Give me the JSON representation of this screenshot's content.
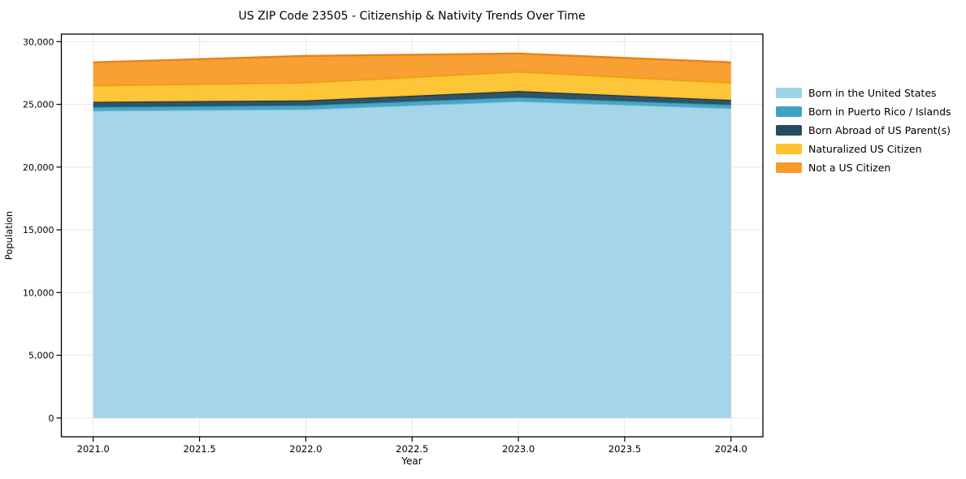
{
  "chart_data": {
    "type": "area",
    "stacked": true,
    "title": "US ZIP Code 23505 - Citizenship & Nativity Trends Over Time",
    "xlabel": "Year",
    "ylabel": "Population",
    "x": [
      2021,
      2022,
      2023,
      2024
    ],
    "series": [
      {
        "name": "Born in the United States",
        "color": "#9fd3e8",
        "edge_color": "#7bbcd9",
        "values": [
          24500,
          24610,
          25250,
          24690
        ]
      },
      {
        "name": "Born in Puerto Rico / Islands",
        "color": "#3fa3c2",
        "edge_color": "#2c89a8",
        "values": [
          300,
          320,
          330,
          290
        ]
      },
      {
        "name": "Born Abroad of US Parent(s)",
        "color": "#274b5f",
        "edge_color": "#1a3847",
        "values": [
          400,
          380,
          480,
          370
        ]
      },
      {
        "name": "Naturalized US Citizen",
        "color": "#fdc22d",
        "edge_color": "#eda214",
        "values": [
          1300,
          1420,
          1540,
          1370
        ]
      },
      {
        "name": "Not a US Citizen",
        "color": "#f89b28",
        "edge_color": "#e8821b",
        "values": [
          1850,
          2130,
          1450,
          1630
        ]
      }
    ],
    "totals": [
      28350,
      28860,
      29050,
      28350
    ],
    "x_tick_values": [
      2021.0,
      2021.5,
      2022.0,
      2022.5,
      2023.0,
      2023.5,
      2024.0
    ],
    "x_tick_labels": [
      "2021.0",
      "2021.5",
      "2022.0",
      "2022.5",
      "2023.0",
      "2023.5",
      "2024.0"
    ],
    "y_tick_values": [
      0,
      5000,
      10000,
      15000,
      20000,
      25000,
      30000
    ],
    "y_tick_labels": [
      "0",
      "5,000",
      "10,000",
      "15,000",
      "20,000",
      "25,000",
      "30,000"
    ],
    "xlim": [
      2020.85,
      2024.15
    ],
    "ylim": [
      -1500,
      30600
    ],
    "grid": true,
    "grid_color": "#e7e7e7",
    "spine_color": "#000000",
    "text_color": "#000000",
    "fill_opacity": 0.95,
    "legend_position": "right"
  }
}
